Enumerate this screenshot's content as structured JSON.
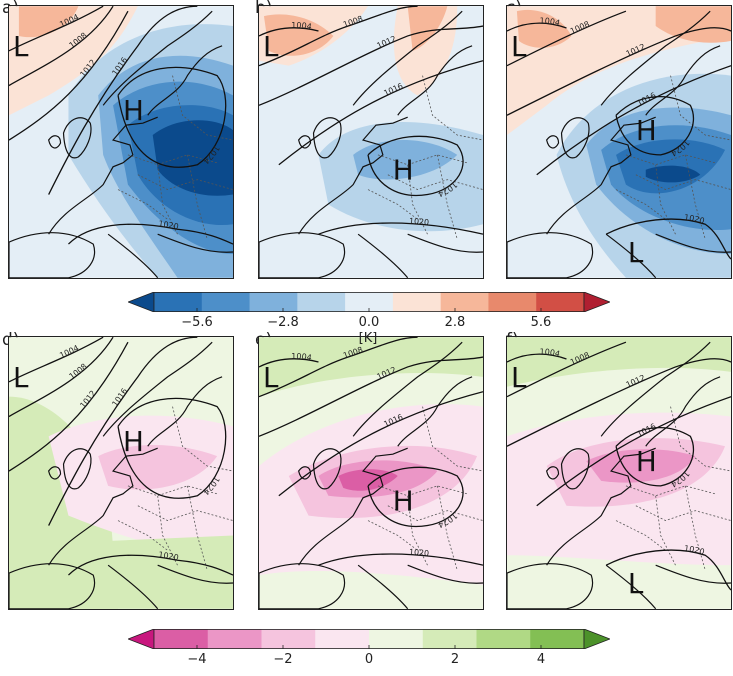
{
  "figure": {
    "panels": [
      {
        "label": "a)",
        "field": "temperature",
        "pattern": "a"
      },
      {
        "label": "b)",
        "field": "temperature",
        "pattern": "b"
      },
      {
        "label": "c)",
        "field": "temperature",
        "pattern": "c"
      },
      {
        "label": "d)",
        "field": "precip",
        "pattern": "d"
      },
      {
        "label": "e)",
        "field": "precip",
        "pattern": "e"
      },
      {
        "label": "f)",
        "field": "precip",
        "pattern": "f"
      }
    ],
    "pressure_symbols": {
      "high": "H",
      "low": "L"
    },
    "isobar_labels": [
      "1004",
      "1008",
      "1012",
      "1016",
      "1020",
      "1024"
    ]
  },
  "chart_data": [
    {
      "type": "heatmap",
      "panels": [
        "a)",
        "b)",
        "c)"
      ],
      "colorbar": {
        "unit": "[K]",
        "ticks": [
          -5.6,
          -2.8,
          0.0,
          2.8,
          5.6
        ],
        "tick_labels": [
          "−5.6",
          "−2.8",
          "0.0",
          "2.8",
          "5.6"
        ],
        "range": [
          -7.0,
          7.0
        ],
        "extend": "both",
        "colors": [
          "#0b4a8c",
          "#2a72b5",
          "#4d8fc9",
          "#7fb1dc",
          "#b7d4ea",
          "#e4eef6",
          "#fbe3d6",
          "#f6b79a",
          "#e8896c",
          "#d24f45",
          "#b01f31"
        ]
      }
    },
    {
      "type": "heatmap",
      "panels": [
        "d)",
        "e)",
        "f)"
      ],
      "colorbar": {
        "unit": "",
        "ticks": [
          -4,
          -2,
          0,
          2,
          4
        ],
        "tick_labels": [
          "−4",
          "−2",
          "0",
          "2",
          "4"
        ],
        "range": [
          -5,
          5
        ],
        "extend": "both",
        "colors": [
          "#c8177e",
          "#db5ea5",
          "#eb96c6",
          "#f5c4de",
          "#fae6f0",
          "#eef6e2",
          "#d5ebb8",
          "#b0d985",
          "#83bf54",
          "#4c922a"
        ]
      }
    }
  ]
}
